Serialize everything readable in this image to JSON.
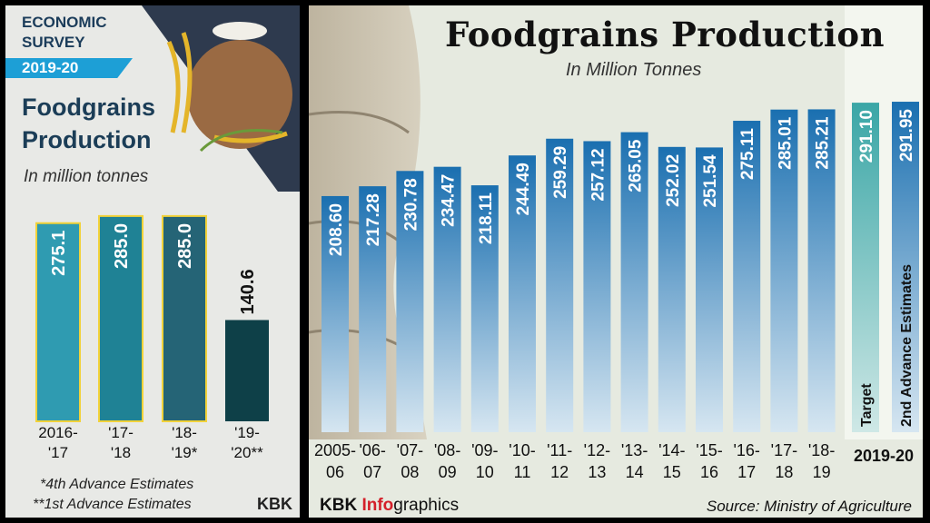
{
  "left_panel": {
    "badge_line1": "ECONOMIC",
    "badge_line2": "SURVEY",
    "badge_year": "2019-20",
    "title_line1": "Foodgrains",
    "title_line2": "Production",
    "subtitle": "In million tonnes",
    "note1": "*4th Advance Estimates",
    "note2": "**1st Advance Estimates",
    "credit": "KBK"
  },
  "right_panel": {
    "title": "Foodgrains Production",
    "subtitle": "In Million Tonnes",
    "logo_a": "KBK ",
    "logo_b": "Info",
    "logo_c": "graphics",
    "source": "Source: Ministry of Agriculture",
    "group_label": "2019-20"
  },
  "colors": {
    "left_bars": [
      "#2f9bb1",
      "#1f8295",
      "#256476",
      "#0e4048"
    ],
    "left_bar_outline": "#f2d23a",
    "right_bar_top": "#1a6fb0",
    "right_bar_bottom": "#d6e6f1",
    "target_bar_top": "#3aa6a6",
    "title_dark": "#1b3d57"
  },
  "chart_data": [
    {
      "type": "bar",
      "categories": [
        "2016-'17",
        "'17-'18",
        "'18-'19*",
        "'19-'20**"
      ],
      "values": [
        275.1,
        285.0,
        285.0,
        140.6
      ],
      "value_labels": [
        "275.1",
        "285.0",
        "285.0",
        "140.6"
      ],
      "tick_labels": [
        [
          "2016-",
          "'17"
        ],
        [
          "'17-",
          "'18"
        ],
        [
          "'18-",
          "'19*"
        ],
        [
          "'19-",
          "'20**"
        ]
      ],
      "title": "Foodgrains Production",
      "subtitle": "In million tonnes",
      "ylim": [
        0,
        300
      ],
      "grid": false
    },
    {
      "type": "bar",
      "categories": [
        "2005-06",
        "'06-07",
        "'07-08",
        "'08-09",
        "'09-10",
        "'10-11",
        "'11-12",
        "'12-13",
        "'13-14",
        "'14-15",
        "'15-16",
        "'16-17",
        "'17-18",
        "'18-19"
      ],
      "values": [
        208.6,
        217.28,
        230.78,
        234.47,
        218.11,
        244.49,
        259.29,
        257.12,
        265.05,
        252.02,
        251.54,
        275.11,
        285.01,
        285.21
      ],
      "value_labels": [
        "208.60",
        "217.28",
        "230.78",
        "234.47",
        "218.11",
        "244.49",
        "259.29",
        "257.12",
        "265.05",
        "252.02",
        "251.54",
        "275.11",
        "285.01",
        "285.21"
      ],
      "tick_labels": [
        [
          "2005-",
          "06"
        ],
        [
          "'06-",
          "07"
        ],
        [
          "'07-",
          "08"
        ],
        [
          "'08-",
          "09"
        ],
        [
          "'09-",
          "10"
        ],
        [
          "'10-",
          "11"
        ],
        [
          "'11-",
          "12"
        ],
        [
          "'12-",
          "13"
        ],
        [
          "'13-",
          "14"
        ],
        [
          "'14-",
          "15"
        ],
        [
          "'15-",
          "16"
        ],
        [
          "'16-",
          "17"
        ],
        [
          "'17-",
          "18"
        ],
        [
          "'18-",
          "19"
        ]
      ],
      "extra": {
        "categories": [
          "Target",
          "2nd Advance Estimates"
        ],
        "values": [
          291.1,
          291.95
        ],
        "value_labels": [
          "291.10",
          "291.95"
        ],
        "group": "2019-20"
      },
      "title": "Foodgrains Production",
      "subtitle": "In Million Tonnes",
      "ylim": [
        0,
        300
      ],
      "grid": false
    }
  ]
}
